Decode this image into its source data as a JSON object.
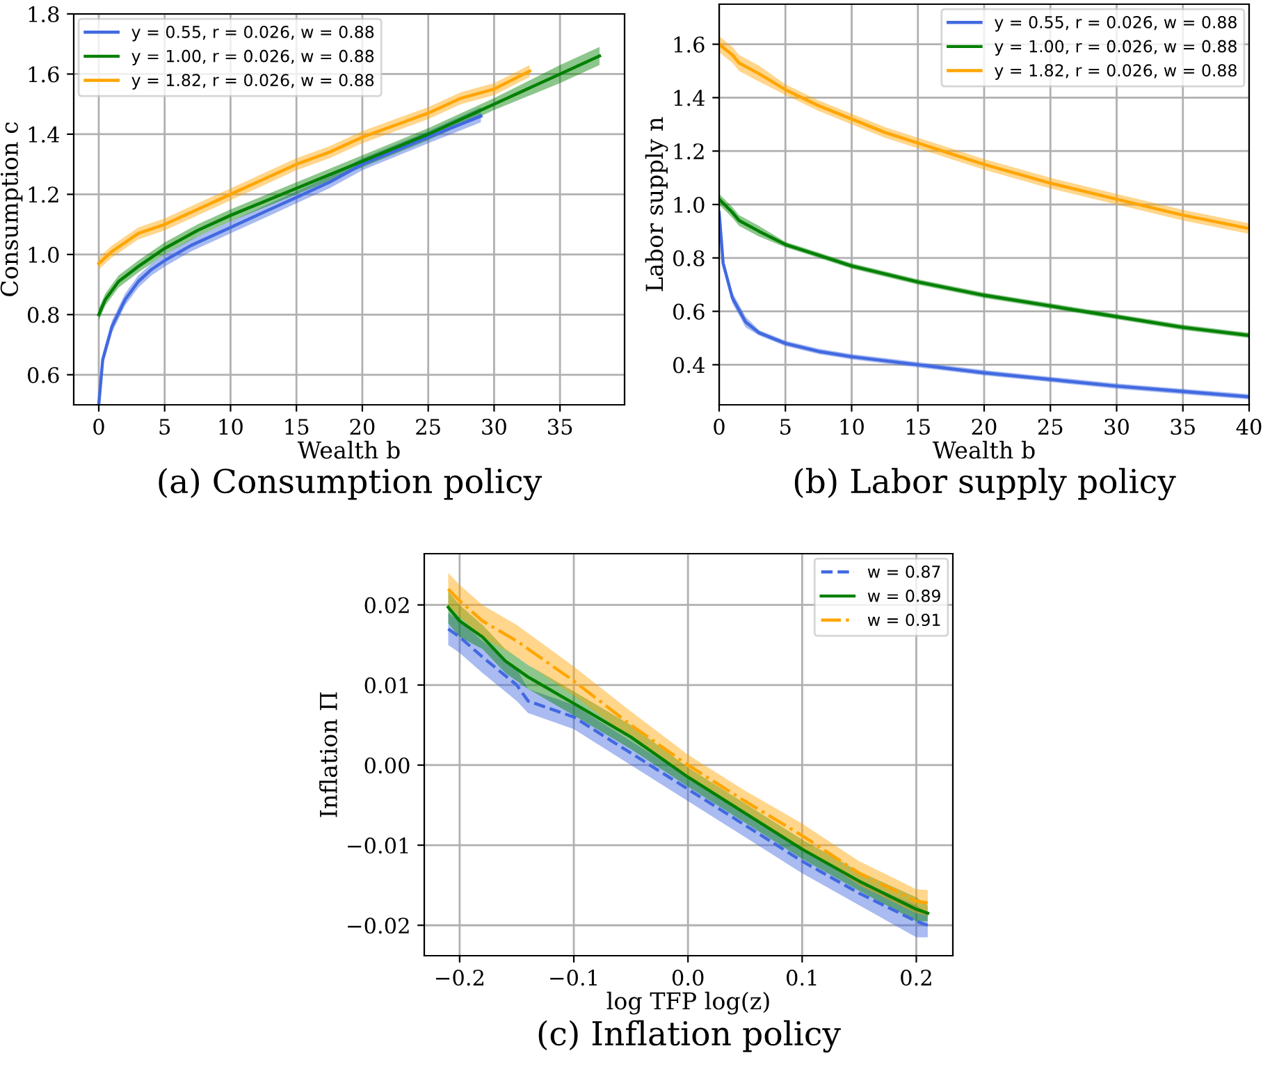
{
  "chart_data": [
    {
      "type": "line",
      "xlabel": "Wealth b",
      "ylabel": "Consumption c",
      "annotations": [
        "(a) Consumption policy"
      ],
      "xlim": [
        -1.9,
        39.9
      ],
      "ylim": [
        0.5,
        1.8
      ],
      "xticks": [
        0,
        5,
        10,
        15,
        20,
        25,
        30,
        35
      ],
      "yticks": [
        0.6,
        0.8,
        {
          "value": 1.0,
          "label": "1.0"
        },
        1.2,
        1.4,
        1.6,
        1.8
      ],
      "grid": true,
      "legend": "top left",
      "series": [
        {
          "name": "y = 0.55, r = 0.026, w = 0.88",
          "color": "#4169e1",
          "x": [
            0,
            0.3,
            1,
            2,
            3,
            4,
            5,
            7,
            10,
            12.5,
            15,
            17.5,
            20,
            25,
            29
          ],
          "values": [
            0.5,
            0.65,
            0.76,
            0.85,
            0.91,
            0.95,
            0.98,
            1.03,
            1.09,
            1.14,
            1.19,
            1.24,
            1.3,
            1.39,
            1.46
          ],
          "lower": [
            0.5,
            0.63,
            0.74,
            0.83,
            0.89,
            0.93,
            0.96,
            1.01,
            1.07,
            1.12,
            1.17,
            1.22,
            1.28,
            1.37,
            1.44
          ],
          "upper": [
            0.51,
            0.67,
            0.78,
            0.87,
            0.93,
            0.97,
            1.0,
            1.05,
            1.11,
            1.16,
            1.21,
            1.26,
            1.32,
            1.41,
            1.49
          ]
        },
        {
          "name": "y = 1.00, r = 0.026, w = 0.88",
          "color": "#008000",
          "x": [
            0,
            0.5,
            1.5,
            3,
            5,
            7.5,
            10,
            15,
            20,
            25,
            30,
            35,
            38
          ],
          "values": [
            0.8,
            0.85,
            0.91,
            0.96,
            1.02,
            1.08,
            1.13,
            1.22,
            1.31,
            1.4,
            1.5,
            1.6,
            1.66
          ],
          "lower": [
            0.78,
            0.83,
            0.89,
            0.94,
            1.0,
            1.06,
            1.11,
            1.2,
            1.29,
            1.38,
            1.48,
            1.57,
            1.63
          ],
          "upper": [
            0.82,
            0.87,
            0.93,
            0.98,
            1.04,
            1.1,
            1.15,
            1.24,
            1.33,
            1.42,
            1.52,
            1.63,
            1.69
          ]
        },
        {
          "name": "y = 1.82, r = 0.026, w = 0.88",
          "color": "#ffa500",
          "x": [
            0,
            1,
            2,
            3,
            5,
            7.5,
            10,
            12.5,
            15,
            17.5,
            20,
            25,
            27.5,
            30,
            32.7
          ],
          "values": [
            0.97,
            1.01,
            1.04,
            1.07,
            1.1,
            1.15,
            1.2,
            1.25,
            1.3,
            1.34,
            1.39,
            1.47,
            1.52,
            1.55,
            1.61
          ],
          "lower": [
            0.95,
            0.99,
            1.02,
            1.05,
            1.08,
            1.13,
            1.18,
            1.23,
            1.28,
            1.32,
            1.37,
            1.45,
            1.5,
            1.53,
            1.59
          ],
          "upper": [
            0.99,
            1.03,
            1.06,
            1.09,
            1.12,
            1.17,
            1.22,
            1.27,
            1.32,
            1.36,
            1.41,
            1.49,
            1.54,
            1.57,
            1.63
          ]
        }
      ]
    },
    {
      "type": "line",
      "xlabel": "Wealth b",
      "ylabel": "Labor supply n",
      "annotations": [
        "(b) Labor supply policy"
      ],
      "xlim": [
        0,
        40
      ],
      "ylim": [
        0.25,
        1.75
      ],
      "xticks": [
        0,
        5,
        10,
        15,
        20,
        25,
        30,
        35,
        40
      ],
      "yticks": [
        0.4,
        0.6,
        0.8,
        {
          "value": 1.0,
          "label": "1.0"
        },
        1.2,
        1.4,
        1.6
      ],
      "grid": true,
      "legend": "top right",
      "series": [
        {
          "name": "y = 0.55, r = 0.026, w = 0.88",
          "color": "#4169e1",
          "x": [
            0,
            0.3,
            1,
            2,
            3,
            5,
            7.5,
            10,
            15,
            20,
            25,
            30,
            35,
            40
          ],
          "values": [
            0.97,
            0.78,
            0.65,
            0.56,
            0.52,
            0.48,
            0.45,
            0.43,
            0.4,
            0.37,
            0.345,
            0.32,
            0.3,
            0.28
          ],
          "lower": [
            0.95,
            0.76,
            0.63,
            0.54,
            0.51,
            0.47,
            0.44,
            0.42,
            0.39,
            0.36,
            0.335,
            0.31,
            0.29,
            0.27
          ],
          "upper": [
            0.99,
            0.8,
            0.67,
            0.58,
            0.53,
            0.49,
            0.46,
            0.44,
            0.41,
            0.38,
            0.355,
            0.33,
            0.31,
            0.29
          ]
        },
        {
          "name": "y = 1.00, r = 0.026, w = 0.88",
          "color": "#008000",
          "x": [
            0,
            1,
            1.5,
            3,
            5,
            7.5,
            10,
            15,
            20,
            25,
            30,
            35,
            40
          ],
          "values": [
            1.02,
            0.97,
            0.94,
            0.9,
            0.85,
            0.81,
            0.77,
            0.71,
            0.66,
            0.62,
            0.58,
            0.54,
            0.51
          ],
          "lower": [
            1.0,
            0.95,
            0.92,
            0.88,
            0.84,
            0.8,
            0.76,
            0.7,
            0.65,
            0.61,
            0.57,
            0.53,
            0.5
          ],
          "upper": [
            1.04,
            0.99,
            0.96,
            0.92,
            0.86,
            0.82,
            0.78,
            0.72,
            0.67,
            0.63,
            0.59,
            0.55,
            0.52
          ]
        },
        {
          "name": "y = 1.82, r = 0.026, w = 0.88",
          "color": "#ffa500",
          "x": [
            0,
            1,
            1.5,
            3,
            5,
            7.5,
            10,
            12.5,
            15,
            17.5,
            20,
            25,
            30,
            35,
            40
          ],
          "values": [
            1.6,
            1.56,
            1.53,
            1.49,
            1.43,
            1.37,
            1.32,
            1.27,
            1.23,
            1.19,
            1.15,
            1.08,
            1.02,
            0.96,
            0.91
          ],
          "lower": [
            1.57,
            1.53,
            1.5,
            1.46,
            1.41,
            1.35,
            1.3,
            1.25,
            1.21,
            1.17,
            1.13,
            1.06,
            1.0,
            0.94,
            0.89
          ],
          "upper": [
            1.63,
            1.59,
            1.56,
            1.52,
            1.45,
            1.39,
            1.34,
            1.29,
            1.25,
            1.21,
            1.17,
            1.1,
            1.04,
            0.98,
            0.93
          ]
        }
      ]
    },
    {
      "type": "line",
      "xlabel": "log TFP log(z)",
      "ylabel": "Inflation Π",
      "annotations": [
        "(c) Inflation policy"
      ],
      "xlim": [
        -0.231,
        0.232
      ],
      "ylim": [
        -0.0238,
        0.0264
      ],
      "xticks": [
        {
          "value": -0.2,
          "label": "−0.2"
        },
        {
          "value": -0.1,
          "label": "−0.1"
        },
        {
          "value": 0.0,
          "label": "0.0"
        },
        0.1,
        0.2
      ],
      "yticks": [
        {
          "value": -0.02,
          "label": "−0.02"
        },
        {
          "value": -0.01,
          "label": "−0.01"
        },
        {
          "value": 0.0,
          "label": "0.00"
        },
        0.01,
        0.02
      ],
      "grid": true,
      "legend": "top right",
      "series": [
        {
          "name": "w = 0.87",
          "color": "#4169e1",
          "line_style": "dashed",
          "x": [
            -0.21,
            -0.2,
            -0.18,
            -0.15,
            -0.14,
            -0.1,
            -0.05,
            0,
            0.05,
            0.1,
            0.15,
            0.2,
            0.21
          ],
          "values": [
            0.017,
            0.016,
            0.0135,
            0.01,
            0.008,
            0.006,
            0.0015,
            -0.003,
            -0.0075,
            -0.012,
            -0.016,
            -0.0195,
            -0.02
          ],
          "lower": [
            0.015,
            0.014,
            0.0115,
            0.008,
            0.0065,
            0.0045,
            0.0,
            -0.0045,
            -0.009,
            -0.0135,
            -0.0175,
            -0.0215,
            -0.0215
          ],
          "upper": [
            0.019,
            0.018,
            0.0155,
            0.012,
            0.0095,
            0.0075,
            0.003,
            -0.0015,
            -0.006,
            -0.0105,
            -0.0145,
            -0.0175,
            -0.0185
          ]
        },
        {
          "name": "w = 0.89",
          "color": "#008000",
          "line_style": "solid",
          "x": [
            -0.21,
            -0.2,
            -0.18,
            -0.16,
            -0.14,
            -0.1,
            -0.05,
            0,
            0.05,
            0.1,
            0.15,
            0.2,
            0.21
          ],
          "values": [
            0.0197,
            0.018,
            0.016,
            0.013,
            0.011,
            0.0077,
            0.0035,
            -0.0015,
            -0.006,
            -0.0105,
            -0.0145,
            -0.018,
            -0.0185
          ],
          "lower": [
            0.0177,
            0.016,
            0.0145,
            0.0115,
            0.0095,
            0.0062,
            0.002,
            -0.0027,
            -0.0072,
            -0.0117,
            -0.0157,
            -0.0195,
            -0.0195
          ],
          "upper": [
            0.0217,
            0.02,
            0.0175,
            0.0145,
            0.0125,
            0.0092,
            0.005,
            -0.0003,
            -0.0048,
            -0.0093,
            -0.0133,
            -0.0165,
            -0.0175
          ]
        },
        {
          "name": "w = 0.91",
          "color": "#ffa500",
          "line_style": "dash-dot",
          "x": [
            -0.21,
            -0.2,
            -0.18,
            -0.15,
            -0.1,
            -0.05,
            0,
            0.05,
            0.1,
            0.15,
            0.2,
            0.21
          ],
          "values": [
            0.022,
            0.0205,
            0.018,
            0.0155,
            0.0105,
            0.005,
            0.0,
            -0.0045,
            -0.0088,
            -0.0135,
            -0.017,
            -0.0172
          ],
          "lower": [
            0.02,
            0.0185,
            0.016,
            0.0135,
            0.0087,
            0.0033,
            -0.0013,
            -0.0058,
            -0.0103,
            -0.015,
            -0.0185,
            -0.0188
          ],
          "upper": [
            0.024,
            0.0225,
            0.02,
            0.0175,
            0.0123,
            0.0067,
            0.0013,
            -0.0032,
            -0.0073,
            -0.012,
            -0.0155,
            -0.0156
          ]
        }
      ]
    }
  ]
}
